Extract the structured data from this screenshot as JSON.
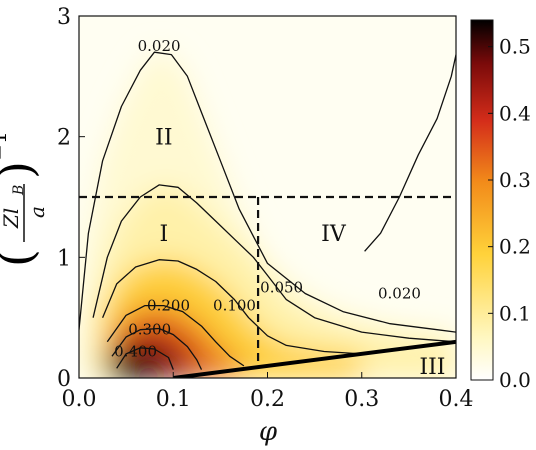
{
  "chart_data": {
    "type": "heatmap",
    "xlabel": "φ",
    "ylabel": {
      "open": "(",
      "numerator": "Zl",
      "subscript": "B",
      "denominator": "a",
      "close": ")",
      "power": "−1"
    },
    "xlim": [
      0.0,
      0.4
    ],
    "ylim": [
      0,
      3
    ],
    "x_ticks": [
      "0.0",
      "0.1",
      "0.2",
      "0.3",
      "0.4"
    ],
    "y_ticks": [
      "0",
      "1",
      "2",
      "3"
    ],
    "colorbar": {
      "range": [
        0.0,
        0.54
      ],
      "ticks": [
        "0.0",
        "0.1",
        "0.2",
        "0.3",
        "0.4",
        "0.5"
      ],
      "colormap": [
        "#ffffff",
        "#fff7c0",
        "#ffd23a",
        "#f28b1a",
        "#d42d1a",
        "#7a0a0a",
        "#000000"
      ]
    },
    "peak": {
      "x": 0.045,
      "y": 0.1,
      "value": 0.54
    },
    "contours": [
      {
        "label": "0.020",
        "level": 0.02,
        "points": [
          [
            0.0,
            0.4
          ],
          [
            0.01,
            1.2
          ],
          [
            0.025,
            1.8
          ],
          [
            0.045,
            2.25
          ],
          [
            0.065,
            2.55
          ],
          [
            0.08,
            2.7
          ],
          [
            0.098,
            2.68
          ],
          [
            0.115,
            2.5
          ],
          [
            0.13,
            2.2
          ],
          [
            0.15,
            1.8
          ],
          [
            0.17,
            1.4
          ],
          [
            0.2,
            0.95
          ],
          [
            0.24,
            0.7
          ],
          [
            0.28,
            0.55
          ],
          [
            0.33,
            0.45
          ],
          [
            0.38,
            0.4
          ],
          [
            0.4,
            0.38
          ]
        ]
      },
      {
        "label": "0.020",
        "level": 0.02,
        "points": [
          [
            0.303,
            1.05
          ],
          [
            0.32,
            1.2
          ],
          [
            0.34,
            1.5
          ],
          [
            0.36,
            1.85
          ],
          [
            0.38,
            2.15
          ],
          [
            0.395,
            2.5
          ],
          [
            0.4,
            2.68
          ]
        ]
      },
      {
        "label": "0.050",
        "level": 0.05,
        "points": [
          [
            0.015,
            0.5
          ],
          [
            0.03,
            1.0
          ],
          [
            0.045,
            1.3
          ],
          [
            0.065,
            1.5
          ],
          [
            0.085,
            1.6
          ],
          [
            0.105,
            1.58
          ],
          [
            0.125,
            1.45
          ],
          [
            0.145,
            1.3
          ],
          [
            0.165,
            1.15
          ],
          [
            0.185,
            1.0
          ],
          [
            0.2,
            0.85
          ],
          [
            0.22,
            0.65
          ],
          [
            0.25,
            0.5
          ],
          [
            0.3,
            0.38
          ],
          [
            0.35,
            0.33
          ],
          [
            0.4,
            0.3
          ]
        ]
      },
      {
        "label": "0.100",
        "level": 0.1,
        "points": [
          [
            0.025,
            0.5
          ],
          [
            0.04,
            0.78
          ],
          [
            0.06,
            0.92
          ],
          [
            0.085,
            0.98
          ],
          [
            0.105,
            0.97
          ],
          [
            0.125,
            0.9
          ],
          [
            0.145,
            0.8
          ],
          [
            0.165,
            0.65
          ],
          [
            0.18,
            0.5
          ],
          [
            0.2,
            0.35
          ],
          [
            0.22,
            0.27
          ],
          [
            0.26,
            0.22
          ],
          [
            0.3,
            0.2
          ]
        ]
      },
      {
        "label": "0.200",
        "level": 0.2,
        "points": [
          [
            0.03,
            0.3
          ],
          [
            0.05,
            0.52
          ],
          [
            0.07,
            0.6
          ],
          [
            0.09,
            0.6
          ],
          [
            0.11,
            0.55
          ],
          [
            0.13,
            0.43
          ],
          [
            0.145,
            0.3
          ],
          [
            0.16,
            0.18
          ],
          [
            0.175,
            0.1
          ]
        ]
      },
      {
        "label": "0.300",
        "level": 0.3,
        "points": [
          [
            0.035,
            0.18
          ],
          [
            0.05,
            0.34
          ],
          [
            0.065,
            0.4
          ],
          [
            0.085,
            0.41
          ],
          [
            0.1,
            0.36
          ],
          [
            0.115,
            0.26
          ],
          [
            0.125,
            0.15
          ],
          [
            0.13,
            0.07
          ]
        ]
      },
      {
        "label": "0.400",
        "level": 0.4,
        "points": [
          [
            0.04,
            0.08
          ],
          [
            0.05,
            0.2
          ],
          [
            0.065,
            0.25
          ],
          [
            0.08,
            0.24
          ],
          [
            0.095,
            0.17
          ],
          [
            0.1,
            0.07
          ]
        ]
      }
    ],
    "contour_labels": [
      {
        "text": "0.020",
        "x": 0.085,
        "y": 2.75
      },
      {
        "text": "0.020",
        "x": 0.34,
        "y": 0.7
      },
      {
        "text": "0.050",
        "x": 0.215,
        "y": 0.75
      },
      {
        "text": "0.100",
        "x": 0.165,
        "y": 0.6
      },
      {
        "text": "0.200",
        "x": 0.095,
        "y": 0.6
      },
      {
        "text": "0.300",
        "x": 0.075,
        "y": 0.4
      },
      {
        "text": "0.400",
        "x": 0.06,
        "y": 0.22
      }
    ],
    "dashed_lines": [
      {
        "x1": 0.0,
        "y1": 1.5,
        "x2": 0.4,
        "y2": 1.5
      },
      {
        "x1": 0.19,
        "y1": 1.5,
        "x2": 0.19,
        "y2": 0.12
      }
    ],
    "solid_line": {
      "x1": 0.1,
      "y1": 0.0,
      "x2": 0.4,
      "y2": 0.3
    },
    "regions": [
      {
        "text": "I",
        "x": 0.09,
        "y": 1.2
      },
      {
        "text": "II",
        "x": 0.09,
        "y": 2.0
      },
      {
        "text": "III",
        "x": 0.375,
        "y": 0.1
      },
      {
        "text": "IV",
        "x": 0.27,
        "y": 1.2
      }
    ]
  }
}
